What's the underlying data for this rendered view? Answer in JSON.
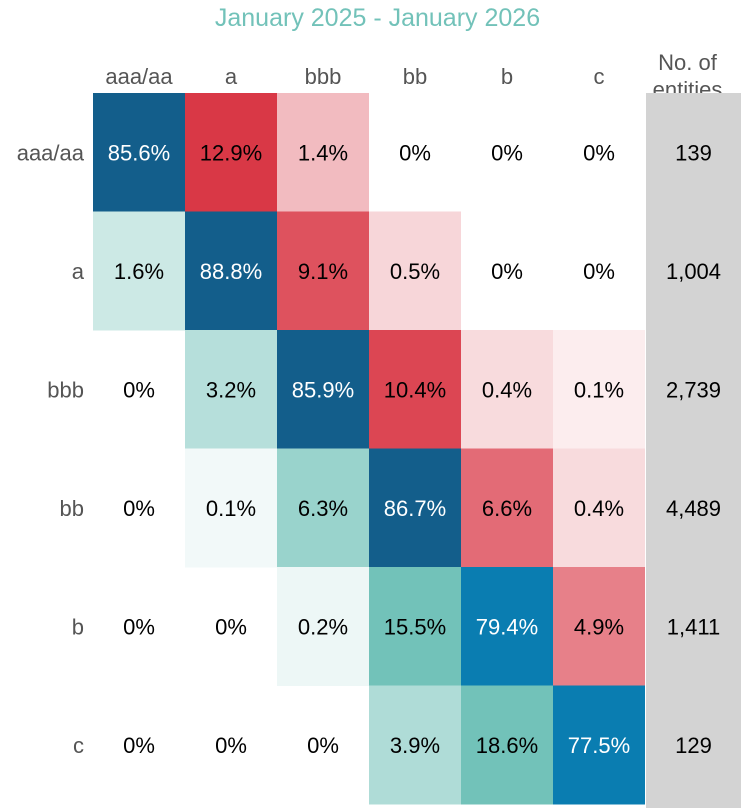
{
  "chart_data": {
    "type": "heatmap",
    "title": "January 2025 - January 2026",
    "columns": [
      "aaa/aa",
      "a",
      "bbb",
      "bb",
      "b",
      "c"
    ],
    "rows": [
      "aaa/aa",
      "a",
      "bbb",
      "bb",
      "b",
      "c"
    ],
    "values": [
      [
        85.6,
        12.9,
        1.4,
        0,
        0,
        0
      ],
      [
        1.6,
        88.8,
        9.1,
        0.5,
        0,
        0
      ],
      [
        0,
        3.2,
        85.9,
        10.4,
        0.4,
        0.1
      ],
      [
        0,
        0.1,
        6.3,
        86.7,
        6.6,
        0.4
      ],
      [
        0,
        0,
        0.2,
        15.5,
        79.4,
        4.9
      ],
      [
        0,
        0,
        0,
        3.9,
        18.6,
        77.5
      ]
    ],
    "value_labels": [
      [
        "85.6%",
        "12.9%",
        "1.4%",
        "0%",
        "0%",
        "0%"
      ],
      [
        "1.6%",
        "88.8%",
        "9.1%",
        "0.5%",
        "0%",
        "0%"
      ],
      [
        "0%",
        "3.2%",
        "85.9%",
        "10.4%",
        "0.4%",
        "0.1%"
      ],
      [
        "0%",
        "0.1%",
        "6.3%",
        "86.7%",
        "6.6%",
        "0.4%"
      ],
      [
        "0%",
        "0%",
        "0.2%",
        "15.5%",
        "79.4%",
        "4.9%"
      ],
      [
        "0%",
        "0%",
        "0%",
        "3.9%",
        "18.6%",
        "77.5%"
      ]
    ],
    "count_header": "No. of entities",
    "counts": [
      "139",
      "1,004",
      "2,739",
      "4,489",
      "1,411",
      "129"
    ],
    "colors": {
      "diagonal_dark": "#135e8b",
      "diagonal_bright": "#0a7db1",
      "upgrade_teal": "#72c2b9",
      "downgrade_red": "#d93846",
      "count_column_bg": "#d3d3d3",
      "label_text": "#555555",
      "light_text": "#ffffff",
      "dark_text": "#000000"
    }
  }
}
